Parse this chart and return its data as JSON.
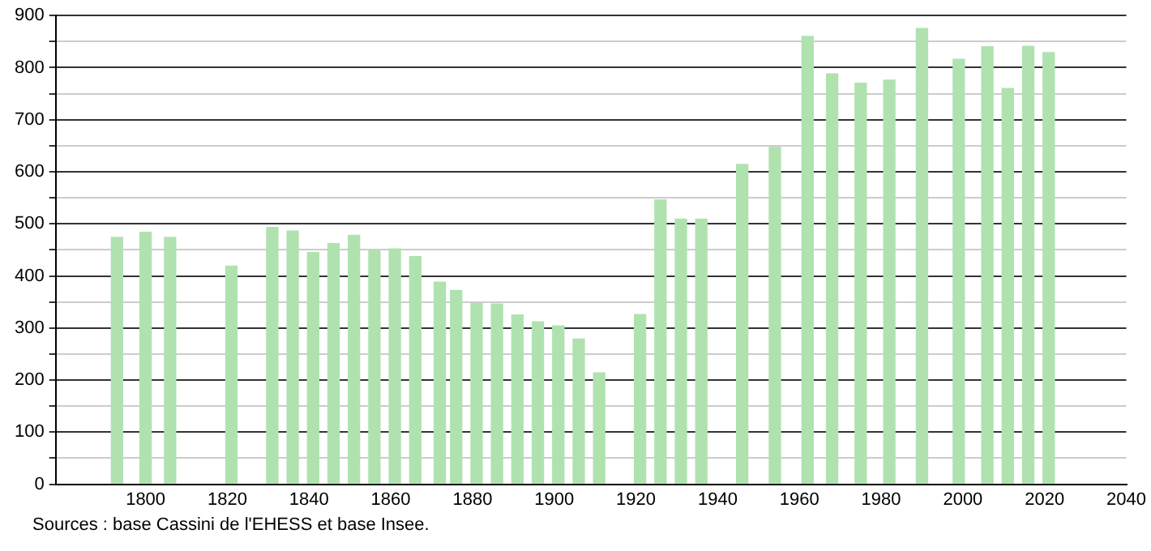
{
  "chart_data": {
    "type": "bar",
    "x": [
      1793,
      1800,
      1806,
      1821,
      1831,
      1836,
      1841,
      1846,
      1851,
      1856,
      1861,
      1866,
      1872,
      1876,
      1881,
      1886,
      1891,
      1896,
      1901,
      1906,
      1911,
      1921,
      1926,
      1931,
      1936,
      1946,
      1954,
      1962,
      1968,
      1975,
      1982,
      1990,
      1999,
      2006,
      2011,
      2016,
      2021
    ],
    "values": [
      474,
      484,
      474,
      419,
      493,
      486,
      445,
      462,
      478,
      449,
      452,
      437,
      388,
      372,
      347,
      346,
      325,
      312,
      304,
      279,
      214,
      326,
      546,
      509,
      509,
      614,
      647,
      860,
      788,
      770,
      776,
      875,
      816,
      840,
      760,
      841,
      829
    ],
    "color": "#b0e2b0",
    "xlim": [
      1778,
      2040
    ],
    "xticks": [
      1800,
      1820,
      1840,
      1860,
      1880,
      1900,
      1920,
      1940,
      1960,
      1980,
      2000,
      2020,
      2040
    ],
    "ylim": [
      0,
      900
    ],
    "yticks": [
      0,
      {
        "value": 50,
        "label": null
      },
      100,
      {
        "value": 150,
        "label": null
      },
      200,
      {
        "value": 250,
        "label": null
      },
      300,
      {
        "value": 350,
        "label": null
      },
      400,
      {
        "value": 450,
        "label": null
      },
      500,
      {
        "value": 550,
        "label": null
      },
      600,
      {
        "value": 650,
        "label": null
      },
      700,
      {
        "value": 750,
        "label": null
      },
      800,
      {
        "value": 850,
        "label": null
      },
      900
    ],
    "grid": "y",
    "legend": false,
    "annotations": [
      "Sources : base Cassini de l'EHESS et base Insee."
    ]
  }
}
